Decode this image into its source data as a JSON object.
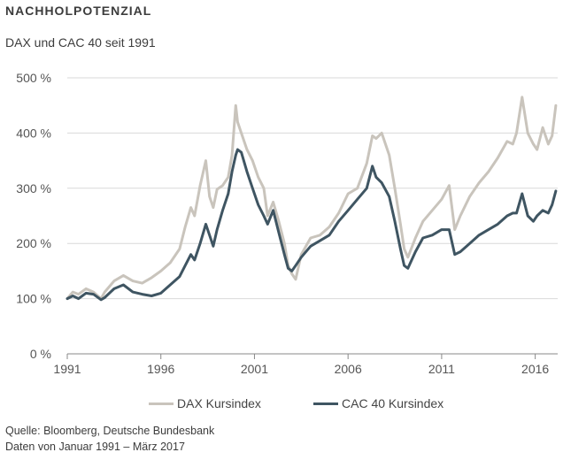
{
  "header": {
    "title": "NACHHOLPOTENZIAL",
    "subtitle": "DAX und CAC 40 seit 1991"
  },
  "footer": {
    "source": "Quelle: Bloomberg, Deutsche Bundesbank",
    "period": "Daten von Januar 1991 – März 2017"
  },
  "colors": {
    "dax": "#c9c4bc",
    "cac": "#3f5562",
    "grid": "#d9d9d9",
    "axis": "#888888"
  },
  "chart_data": {
    "type": "line",
    "title": "NACHHOLPOTENZIAL",
    "subtitle": "DAX und CAC 40 seit 1991",
    "xlabel": "",
    "ylabel": "",
    "xlim": [
      1991.0,
      2017.2
    ],
    "ylim": [
      0,
      500
    ],
    "x_ticks": [
      1991,
      1996,
      2001,
      2006,
      2011,
      2016
    ],
    "y_ticks": [
      0,
      100,
      200,
      300,
      400,
      500
    ],
    "y_tick_labels": [
      "0 %",
      "100 %",
      "200 %",
      "300 %",
      "400 %",
      "500 %"
    ],
    "grid": true,
    "legend": "bottom-center",
    "series": [
      {
        "name": "DAX Kursindex",
        "x": [
          1991.0,
          1991.3,
          1991.6,
          1992.0,
          1992.4,
          1992.8,
          1993.0,
          1993.5,
          1994.0,
          1994.5,
          1995.0,
          1995.5,
          1996.0,
          1996.5,
          1997.0,
          1997.3,
          1997.6,
          1997.8,
          1998.1,
          1998.4,
          1998.6,
          1998.8,
          1999.0,
          1999.3,
          1999.6,
          1999.8,
          2000.0,
          2000.1,
          2000.3,
          2000.6,
          2000.9,
          2001.2,
          2001.5,
          2001.7,
          2002.0,
          2002.3,
          2002.6,
          2002.8,
          2003.0,
          2003.2,
          2003.5,
          2004.0,
          2004.5,
          2005.0,
          2005.5,
          2006.0,
          2006.5,
          2007.0,
          2007.3,
          2007.5,
          2007.8,
          2008.2,
          2008.5,
          2008.8,
          2009.0,
          2009.2,
          2009.6,
          2010.0,
          2010.5,
          2011.0,
          2011.4,
          2011.7,
          2012.0,
          2012.5,
          2013.0,
          2013.5,
          2014.0,
          2014.5,
          2014.8,
          2015.0,
          2015.3,
          2015.6,
          2015.9,
          2016.1,
          2016.4,
          2016.7,
          2016.9,
          2017.1
        ],
        "values": [
          100,
          112,
          108,
          118,
          112,
          100,
          112,
          132,
          142,
          132,
          128,
          138,
          150,
          165,
          190,
          230,
          265,
          250,
          305,
          350,
          285,
          265,
          298,
          305,
          320,
          360,
          450,
          420,
          400,
          370,
          350,
          320,
          300,
          250,
          275,
          240,
          200,
          160,
          145,
          135,
          180,
          210,
          215,
          230,
          255,
          290,
          300,
          345,
          395,
          390,
          400,
          360,
          300,
          235,
          190,
          175,
          210,
          240,
          260,
          280,
          305,
          225,
          250,
          285,
          310,
          330,
          355,
          385,
          380,
          400,
          465,
          400,
          380,
          370,
          410,
          380,
          395,
          450
        ]
      },
      {
        "name": "CAC 40 Kursindex",
        "x": [
          1991.0,
          1991.3,
          1991.6,
          1992.0,
          1992.4,
          1992.8,
          1993.0,
          1993.5,
          1994.0,
          1994.5,
          1995.0,
          1995.5,
          1996.0,
          1996.5,
          1997.0,
          1997.3,
          1997.6,
          1997.8,
          1998.1,
          1998.4,
          1998.6,
          1998.8,
          1999.0,
          1999.3,
          1999.6,
          1999.8,
          2000.0,
          2000.1,
          2000.3,
          2000.6,
          2000.9,
          2001.2,
          2001.5,
          2001.7,
          2002.0,
          2002.3,
          2002.6,
          2002.8,
          2003.0,
          2003.2,
          2003.5,
          2004.0,
          2004.5,
          2005.0,
          2005.5,
          2006.0,
          2006.5,
          2007.0,
          2007.3,
          2007.5,
          2007.8,
          2008.2,
          2008.5,
          2008.8,
          2009.0,
          2009.2,
          2009.6,
          2010.0,
          2010.5,
          2011.0,
          2011.4,
          2011.7,
          2012.0,
          2012.5,
          2013.0,
          2013.5,
          2014.0,
          2014.5,
          2014.8,
          2015.0,
          2015.3,
          2015.6,
          2015.9,
          2016.1,
          2016.4,
          2016.7,
          2016.9,
          2017.1
        ],
        "values": [
          100,
          105,
          100,
          110,
          108,
          98,
          102,
          118,
          125,
          112,
          108,
          105,
          110,
          125,
          140,
          160,
          180,
          170,
          200,
          235,
          215,
          195,
          225,
          260,
          290,
          330,
          360,
          370,
          365,
          330,
          300,
          270,
          250,
          235,
          260,
          220,
          180,
          155,
          150,
          160,
          175,
          195,
          205,
          215,
          240,
          260,
          280,
          300,
          340,
          320,
          310,
          285,
          240,
          190,
          160,
          155,
          185,
          210,
          215,
          225,
          225,
          180,
          185,
          200,
          215,
          225,
          235,
          250,
          255,
          255,
          290,
          250,
          240,
          250,
          260,
          255,
          270,
          295
        ]
      }
    ]
  }
}
